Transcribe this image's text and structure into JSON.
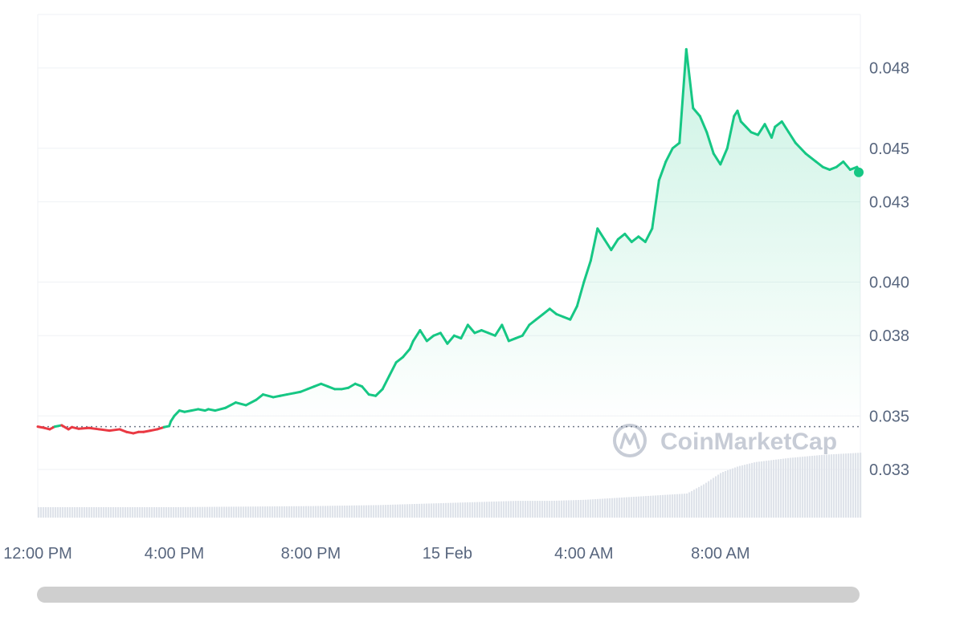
{
  "colors": {
    "up": "#16c784",
    "down": "#ea3943",
    "grid": "#eff2f5",
    "tick": "#58667e",
    "volume": "#dfe3ea"
  },
  "watermark": {
    "text": "CoinMarketCap",
    "logo": "coinmarketcap-logo-icon"
  },
  "chart_data": {
    "type": "line",
    "title": "",
    "xlabel": "",
    "ylabel": "",
    "x_tick_labels": [
      "12:00 PM",
      "4:00 PM",
      "8:00 PM",
      "15 Feb",
      "4:00 AM",
      "8:00 AM"
    ],
    "x_tick_hours": [
      0,
      4,
      8,
      12,
      16,
      20
    ],
    "x_range_hours": [
      0,
      24.1
    ],
    "y_tick_labels": [
      "0.048",
      "0.045",
      "0.043",
      "0.040",
      "0.038",
      "0.035",
      "0.033"
    ],
    "y_ticks": [
      0.048,
      0.045,
      0.043,
      0.04,
      0.038,
      0.035,
      0.033
    ],
    "ylim": [
      0.0312,
      0.05
    ],
    "reference_value": 0.0346,
    "grid": true,
    "legend": "none",
    "series": [
      {
        "x_hours": [
          0,
          0.2,
          0.35,
          0.5,
          0.7,
          0.9,
          1.0,
          1.2,
          1.5,
          1.8,
          2.1,
          2.4,
          2.6,
          2.8,
          2.95,
          3.1,
          3.3,
          3.5,
          3.7,
          3.85,
          3.9,
          4.0,
          4.15,
          4.3,
          4.5,
          4.7,
          4.9,
          5.0,
          5.2,
          5.5,
          5.8,
          6.1,
          6.4,
          6.6,
          6.9,
          7.1,
          7.3,
          7.5,
          7.7,
          7.9,
          8.1,
          8.3,
          8.5,
          8.7,
          8.9,
          9.1,
          9.3,
          9.5,
          9.7,
          9.9,
          10.1,
          10.3,
          10.5,
          10.7,
          10.9,
          11.0,
          11.2,
          11.4,
          11.6,
          11.8,
          12.0,
          12.2,
          12.4,
          12.6,
          12.8,
          13.0,
          13.2,
          13.4,
          13.6,
          13.8,
          14.0,
          14.2,
          14.4,
          14.6,
          14.8,
          15.0,
          15.2,
          15.4,
          15.6,
          15.8,
          16.0,
          16.2,
          16.4,
          16.6,
          16.8,
          17.0,
          17.2,
          17.4,
          17.6,
          17.8,
          18.0,
          18.2,
          18.4,
          18.6,
          18.8,
          19.0,
          19.2,
          19.4,
          19.6,
          19.8,
          20.0,
          20.2,
          20.4,
          20.5,
          20.6,
          20.75,
          20.9,
          21.1,
          21.3,
          21.5,
          21.6,
          21.8,
          22.0,
          22.2,
          22.35,
          22.5,
          22.6,
          22.8,
          23.0,
          23.2,
          23.4,
          23.6,
          23.8,
          24.0,
          24.1
        ],
        "values": [
          0.0346,
          0.03455,
          0.0345,
          0.0346,
          0.03465,
          0.0345,
          0.03458,
          0.03452,
          0.03455,
          0.0345,
          0.03445,
          0.0345,
          0.0344,
          0.03435,
          0.0344,
          0.0344,
          0.03445,
          0.0345,
          0.03458,
          0.03462,
          0.0348,
          0.035,
          0.0352,
          0.03515,
          0.0352,
          0.03525,
          0.0352,
          0.03525,
          0.0352,
          0.0353,
          0.0355,
          0.0354,
          0.0356,
          0.0358,
          0.0357,
          0.03575,
          0.0358,
          0.03585,
          0.0359,
          0.036,
          0.0361,
          0.0362,
          0.0361,
          0.036,
          0.036,
          0.03605,
          0.0362,
          0.0361,
          0.0358,
          0.03575,
          0.036,
          0.0365,
          0.037,
          0.0372,
          0.0375,
          0.0378,
          0.0382,
          0.0378,
          0.038,
          0.0381,
          0.0377,
          0.038,
          0.0379,
          0.0384,
          0.0381,
          0.0382,
          0.0381,
          0.038,
          0.0384,
          0.0378,
          0.0379,
          0.038,
          0.0384,
          0.0386,
          0.0388,
          0.039,
          0.0388,
          0.0387,
          0.0386,
          0.0391,
          0.04,
          0.0408,
          0.042,
          0.0416,
          0.0412,
          0.0416,
          0.0418,
          0.0415,
          0.0417,
          0.0415,
          0.042,
          0.0438,
          0.0445,
          0.045,
          0.0452,
          0.0487,
          0.0465,
          0.0462,
          0.0456,
          0.0448,
          0.0444,
          0.045,
          0.0462,
          0.0464,
          0.046,
          0.0458,
          0.0456,
          0.0455,
          0.0459,
          0.0454,
          0.0458,
          0.046,
          0.0456,
          0.0452,
          0.045,
          0.0448,
          0.0447,
          0.0445,
          0.0443,
          0.0442,
          0.0443,
          0.0445,
          0.0442,
          0.0443,
          0.0441
        ]
      }
    ],
    "volume": {
      "x_hours": [
        0,
        2,
        4,
        6,
        8,
        10,
        11,
        12,
        13,
        14,
        15,
        16,
        17,
        18,
        19,
        19.5,
        20,
        20.5,
        21,
        22,
        23,
        24.1
      ],
      "values": [
        1,
        1,
        1,
        1.05,
        1.1,
        1.2,
        1.3,
        1.4,
        1.5,
        1.6,
        1.6,
        1.7,
        1.9,
        2.1,
        2.3,
        3.2,
        4.3,
        4.9,
        5.3,
        5.7,
        6.0,
        6.2
      ],
      "max": 8
    }
  }
}
